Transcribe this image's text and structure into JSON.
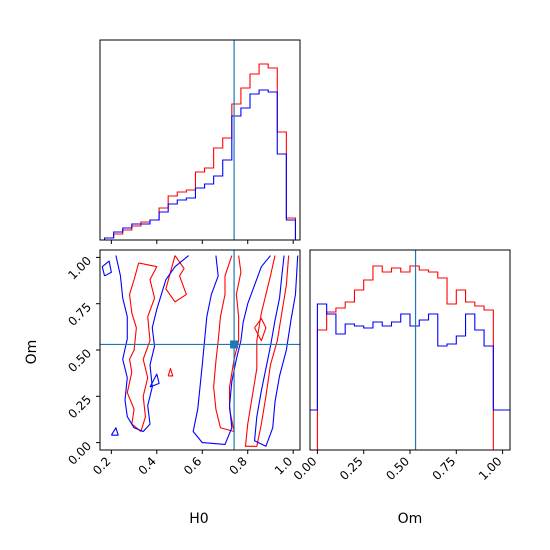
{
  "chart_data": {
    "type": "corner",
    "parameters": [
      "H0",
      "Om"
    ],
    "truths": {
      "H0": 0.74,
      "Om": 0.53
    },
    "colors": {
      "red": "#ff0000",
      "blue": "#0000ff",
      "truth": "#1f77b4"
    },
    "panels": [
      {
        "id": "hist_H0",
        "type": "step-histogram",
        "xlim": [
          0.15,
          1.03
        ],
        "ylim": [
          0,
          1.0
        ],
        "bin_edges": [
          0.13,
          0.17,
          0.21,
          0.25,
          0.29,
          0.33,
          0.37,
          0.41,
          0.45,
          0.49,
          0.53,
          0.57,
          0.61,
          0.65,
          0.69,
          0.73,
          0.77,
          0.81,
          0.85,
          0.89,
          0.93,
          0.97,
          1.01
        ],
        "series": [
          {
            "name": "",
            "color": "red",
            "values": [
              0.0,
              0.01,
              0.03,
              0.05,
              0.07,
              0.09,
              0.1,
              0.16,
              0.22,
              0.24,
              0.25,
              0.34,
              0.36,
              0.46,
              0.51,
              0.68,
              0.76,
              0.83,
              0.88,
              0.86,
              0.54,
              0.11
            ]
          },
          {
            "name": "",
            "color": "blue",
            "values": [
              0.0,
              0.01,
              0.04,
              0.06,
              0.08,
              0.08,
              0.1,
              0.14,
              0.18,
              0.2,
              0.21,
              0.26,
              0.28,
              0.32,
              0.4,
              0.62,
              0.66,
              0.73,
              0.75,
              0.74,
              0.43,
              0.1
            ]
          }
        ]
      },
      {
        "id": "hist_Om",
        "type": "step-histogram",
        "xlim": [
          -0.04,
          1.04
        ],
        "ylim": [
          0,
          1.0
        ],
        "bin_edges": [
          -0.05,
          0.0,
          0.05,
          0.1,
          0.15,
          0.2,
          0.25,
          0.3,
          0.35,
          0.4,
          0.45,
          0.5,
          0.55,
          0.6,
          0.65,
          0.7,
          0.75,
          0.8,
          0.85,
          0.9,
          0.95,
          1.0,
          1.05
        ],
        "series": [
          {
            "name": "",
            "color": "red",
            "values": [
              0.0,
              0.6,
              0.69,
              0.71,
              0.74,
              0.8,
              0.85,
              0.92,
              0.89,
              0.91,
              0.89,
              0.92,
              0.9,
              0.89,
              0.86,
              0.73,
              0.8,
              0.74,
              0.72,
              0.7,
              0.0,
              0.0
            ]
          },
          {
            "name": "",
            "color": "blue",
            "values": [
              0.2,
              0.73,
              0.68,
              0.58,
              0.63,
              0.62,
              0.61,
              0.64,
              0.62,
              0.64,
              0.68,
              0.62,
              0.65,
              0.68,
              0.52,
              0.53,
              0.57,
              0.68,
              0.6,
              0.52,
              0.2,
              0.2
            ]
          }
        ]
      },
      {
        "id": "contour_H0_Om",
        "type": "contour",
        "xlim": [
          0.15,
          1.03
        ],
        "ylim": [
          -0.04,
          1.04
        ],
        "series": [
          {
            "name": "",
            "color": "red",
            "contours": [
              [
                [
                  0.32,
                  0.97
                ],
                [
                  0.3,
                  0.88
                ],
                [
                  0.28,
                  0.8
                ],
                [
                  0.29,
                  0.7
                ],
                [
                  0.31,
                  0.62
                ],
                [
                  0.3,
                  0.5
                ],
                [
                  0.28,
                  0.45
                ],
                [
                  0.29,
                  0.38
                ],
                [
                  0.27,
                  0.27
                ],
                [
                  0.3,
                  0.18
                ],
                [
                  0.29,
                  0.1
                ],
                [
                  0.33,
                  0.06
                ],
                [
                  0.35,
                  0.14
                ],
                [
                  0.34,
                  0.25
                ],
                [
                  0.36,
                  0.35
                ],
                [
                  0.34,
                  0.45
                ],
                [
                  0.37,
                  0.55
                ],
                [
                  0.36,
                  0.68
                ],
                [
                  0.39,
                  0.78
                ],
                [
                  0.37,
                  0.88
                ],
                [
                  0.4,
                  0.95
                ],
                [
                  0.32,
                  0.97
                ]
              ],
              [
                [
                  0.48,
                  1.01
                ],
                [
                  0.52,
                  0.94
                ],
                [
                  0.5,
                  0.9
                ],
                [
                  0.53,
                  0.8
                ],
                [
                  0.48,
                  0.76
                ],
                [
                  0.44,
                  0.83
                ],
                [
                  0.46,
                  0.92
                ],
                [
                  0.48,
                  1.01
                ]
              ],
              [
                [
                  0.73,
                  1.01
                ],
                [
                  0.7,
                  0.9
                ],
                [
                  0.7,
                  0.8
                ],
                [
                  0.68,
                  0.68
                ],
                [
                  0.67,
                  0.55
                ],
                [
                  0.66,
                  0.44
                ],
                [
                  0.65,
                  0.3
                ],
                [
                  0.66,
                  0.18
                ],
                [
                  0.68,
                  0.08
                ],
                [
                  0.74,
                  0.06
                ],
                [
                  0.72,
                  0.18
                ],
                [
                  0.72,
                  0.3
                ],
                [
                  0.74,
                  0.45
                ],
                [
                  0.76,
                  0.55
                ],
                [
                  0.76,
                  0.68
                ],
                [
                  0.75,
                  0.8
                ],
                [
                  0.77,
                  0.92
                ],
                [
                  0.76,
                  1.01
                ]
              ],
              [
                [
                  0.92,
                  1.01
                ],
                [
                  0.9,
                  0.9
                ],
                [
                  0.88,
                  0.8
                ],
                [
                  0.86,
                  0.7
                ],
                [
                  0.84,
                  0.55
                ],
                [
                  0.84,
                  0.4
                ],
                [
                  0.82,
                  0.25
                ],
                [
                  0.8,
                  0.1
                ],
                [
                  0.79,
                  -0.02
                ],
                [
                  0.84,
                  -0.02
                ],
                [
                  0.86,
                  0.1
                ],
                [
                  0.88,
                  0.25
                ],
                [
                  0.9,
                  0.42
                ],
                [
                  0.93,
                  0.55
                ],
                [
                  0.95,
                  0.7
                ],
                [
                  0.97,
                  0.85
                ],
                [
                  0.98,
                  1.01
                ]
              ],
              [
                [
                  0.83,
                  0.62
                ],
                [
                  0.86,
                  0.67
                ],
                [
                  0.88,
                  0.62
                ],
                [
                  0.86,
                  0.55
                ],
                [
                  0.83,
                  0.62
                ]
              ],
              [
                [
                  0.45,
                  0.36
                ],
                [
                  0.46,
                  0.4
                ],
                [
                  0.47,
                  0.36
                ],
                [
                  0.45,
                  0.36
                ]
              ]
            ]
          },
          {
            "name": "",
            "color": "blue",
            "contours": [
              [
                [
                  0.22,
                  1.01
                ],
                [
                  0.24,
                  0.9
                ],
                [
                  0.25,
                  0.78
                ],
                [
                  0.27,
                  0.68
                ],
                [
                  0.27,
                  0.56
                ],
                [
                  0.25,
                  0.45
                ],
                [
                  0.27,
                  0.35
                ],
                [
                  0.26,
                  0.23
                ],
                [
                  0.27,
                  0.14
                ],
                [
                  0.3,
                  0.08
                ],
                [
                  0.34,
                  0.06
                ],
                [
                  0.37,
                  0.1
                ],
                [
                  0.36,
                  0.2
                ],
                [
                  0.38,
                  0.3
                ],
                [
                  0.37,
                  0.42
                ],
                [
                  0.39,
                  0.52
                ],
                [
                  0.38,
                  0.62
                ],
                [
                  0.4,
                  0.72
                ],
                [
                  0.42,
                  0.8
                ],
                [
                  0.44,
                  0.88
                ],
                [
                  0.48,
                  0.95
                ],
                [
                  0.54,
                  1.01
                ]
              ],
              [
                [
                  0.66,
                  1.01
                ],
                [
                  0.67,
                  0.9
                ],
                [
                  0.64,
                  0.8
                ],
                [
                  0.62,
                  0.68
                ],
                [
                  0.61,
                  0.55
                ],
                [
                  0.6,
                  0.42
                ],
                [
                  0.59,
                  0.3
                ],
                [
                  0.58,
                  0.18
                ],
                [
                  0.56,
                  0.06
                ],
                [
                  0.6,
                  0.0
                ],
                [
                  0.7,
                  -0.01
                ],
                [
                  0.73,
                  0.08
                ],
                [
                  0.72,
                  0.2
                ],
                [
                  0.73,
                  0.33
                ],
                [
                  0.75,
                  0.45
                ],
                [
                  0.77,
                  0.55
                ],
                [
                  0.78,
                  0.65
                ],
                [
                  0.8,
                  0.75
                ],
                [
                  0.83,
                  0.85
                ],
                [
                  0.86,
                  0.95
                ],
                [
                  0.9,
                  1.01
                ]
              ],
              [
                [
                  0.96,
                  1.01
                ],
                [
                  0.95,
                  0.9
                ],
                [
                  0.94,
                  0.78
                ],
                [
                  0.92,
                  0.66
                ],
                [
                  0.9,
                  0.52
                ],
                [
                  0.88,
                  0.4
                ],
                [
                  0.86,
                  0.28
                ],
                [
                  0.84,
                  0.14
                ],
                [
                  0.83,
                  0.01
                ],
                [
                  0.88,
                  -0.02
                ],
                [
                  0.91,
                  0.08
                ],
                [
                  0.92,
                  0.22
                ],
                [
                  0.94,
                  0.36
                ],
                [
                  0.97,
                  0.5
                ],
                [
                  0.99,
                  0.66
                ],
                [
                  1.01,
                  0.8
                ],
                [
                  1.02,
                  1.01
                ]
              ],
              [
                [
                  0.17,
                  0.9
                ],
                [
                  0.16,
                  0.95
                ],
                [
                  0.19,
                  0.98
                ],
                [
                  0.2,
                  0.92
                ],
                [
                  0.17,
                  0.9
                ]
              ],
              [
                [
                  0.37,
                  0.3
                ],
                [
                  0.4,
                  0.37
                ],
                [
                  0.41,
                  0.32
                ],
                [
                  0.37,
                  0.3
                ]
              ],
              [
                [
                  0.2,
                  0.04
                ],
                [
                  0.22,
                  0.08
                ],
                [
                  0.23,
                  0.04
                ],
                [
                  0.2,
                  0.04
                ]
              ]
            ]
          }
        ]
      }
    ],
    "ticks": {
      "H0": {
        "values": [
          0.2,
          0.4,
          0.6,
          0.8,
          1.0
        ],
        "labels": [
          "0.2",
          "0.4",
          "0.6",
          "0.8",
          "1.0"
        ]
      },
      "Om_y": {
        "values": [
          0.0,
          0.25,
          0.5,
          0.75,
          1.0
        ],
        "labels": [
          "0.00",
          "0.25",
          "0.50",
          "0.75",
          "1.00"
        ]
      },
      "Om_x": {
        "values": [
          0.0,
          0.25,
          0.5,
          0.75,
          1.0
        ],
        "labels": [
          "0.00",
          "0.25",
          "0.50",
          "0.75",
          "1.00"
        ]
      }
    },
    "axis_labels": {
      "H0_x": "H0",
      "Om_x": "Om",
      "Om_y": "Om"
    },
    "grid": false,
    "legend": false
  }
}
